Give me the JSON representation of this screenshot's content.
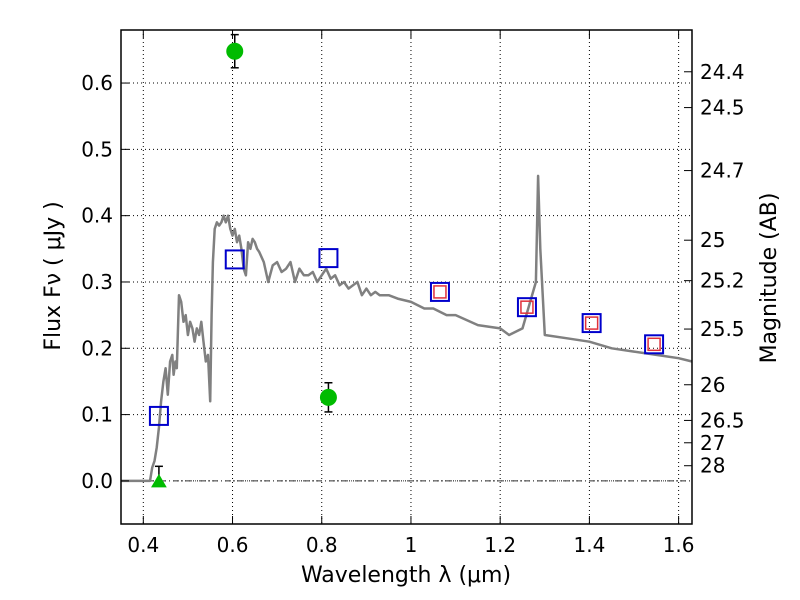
{
  "chart_data": {
    "type": "scatter",
    "xlabel": "Wavelength  λ (μm)",
    "ylabel": "Flux  Fν  ( μJy )",
    "y2label": "Magnitude (AB)",
    "xlim": [
      0.35,
      1.63
    ],
    "ylim": [
      -0.065,
      0.68
    ],
    "grid": true,
    "x_ticks": [
      0.4,
      0.6,
      0.8,
      1.0,
      1.2,
      1.4,
      1.6
    ],
    "x_tick_labels": [
      "0.4",
      "0.6",
      "0.8",
      "1",
      "1.2",
      "1.4",
      "1.6"
    ],
    "y_ticks": [
      0.0,
      0.1,
      0.2,
      0.3,
      0.4,
      0.5,
      0.6
    ],
    "y_tick_labels": [
      "0.0",
      "0.1",
      "0.2",
      "0.3",
      "0.4",
      "0.5",
      "0.6"
    ],
    "mag_ticks": [
      {
        "label": "24.4",
        "flux": 0.617
      },
      {
        "label": "24.5",
        "flux": 0.563
      },
      {
        "label": "24.7",
        "flux": 0.468
      },
      {
        "label": "25",
        "flux": 0.363
      },
      {
        "label": "25.2",
        "flux": 0.302
      },
      {
        "label": "25.5",
        "flux": 0.229
      },
      {
        "label": "26",
        "flux": 0.145
      },
      {
        "label": "26.5",
        "flux": 0.0912
      },
      {
        "label": "27",
        "flux": 0.0575
      },
      {
        "label": "28",
        "flux": 0.0229
      }
    ],
    "series": [
      {
        "name": "model spectrum",
        "style": "line",
        "color": "#808080",
        "x": [
          0.35,
          0.41,
          0.415,
          0.42,
          0.425,
          0.43,
          0.435,
          0.44,
          0.445,
          0.45,
          0.455,
          0.46,
          0.465,
          0.468,
          0.472,
          0.475,
          0.48,
          0.485,
          0.49,
          0.495,
          0.5,
          0.505,
          0.51,
          0.515,
          0.52,
          0.525,
          0.53,
          0.535,
          0.54,
          0.545,
          0.55,
          0.553,
          0.556,
          0.56,
          0.565,
          0.57,
          0.575,
          0.58,
          0.585,
          0.59,
          0.595,
          0.6,
          0.605,
          0.61,
          0.615,
          0.62,
          0.625,
          0.63,
          0.635,
          0.64,
          0.645,
          0.65,
          0.655,
          0.66,
          0.67,
          0.68,
          0.69,
          0.7,
          0.71,
          0.72,
          0.73,
          0.74,
          0.75,
          0.76,
          0.77,
          0.78,
          0.79,
          0.8,
          0.81,
          0.82,
          0.83,
          0.84,
          0.85,
          0.86,
          0.87,
          0.88,
          0.89,
          0.9,
          0.91,
          0.92,
          0.93,
          0.95,
          0.97,
          1.0,
          1.03,
          1.05,
          1.08,
          1.1,
          1.15,
          1.2,
          1.22,
          1.25,
          1.28,
          1.285,
          1.29,
          1.3,
          1.35,
          1.4,
          1.45,
          1.5,
          1.55,
          1.6,
          1.63
        ],
        "y": [
          0.0,
          0.0,
          0.0,
          0.02,
          0.03,
          0.05,
          0.08,
          0.12,
          0.15,
          0.17,
          0.13,
          0.18,
          0.19,
          0.16,
          0.18,
          0.17,
          0.28,
          0.27,
          0.24,
          0.25,
          0.22,
          0.24,
          0.23,
          0.21,
          0.23,
          0.22,
          0.24,
          0.21,
          0.18,
          0.19,
          0.12,
          0.25,
          0.33,
          0.38,
          0.39,
          0.385,
          0.39,
          0.4,
          0.39,
          0.4,
          0.38,
          0.37,
          0.38,
          0.36,
          0.37,
          0.35,
          0.32,
          0.31,
          0.36,
          0.35,
          0.365,
          0.36,
          0.35,
          0.345,
          0.33,
          0.3,
          0.325,
          0.33,
          0.315,
          0.32,
          0.33,
          0.3,
          0.32,
          0.31,
          0.31,
          0.315,
          0.3,
          0.31,
          0.32,
          0.305,
          0.31,
          0.295,
          0.3,
          0.29,
          0.295,
          0.3,
          0.28,
          0.29,
          0.28,
          0.285,
          0.28,
          0.28,
          0.275,
          0.27,
          0.26,
          0.26,
          0.25,
          0.25,
          0.235,
          0.23,
          0.22,
          0.23,
          0.3,
          0.46,
          0.35,
          0.22,
          0.215,
          0.21,
          0.2,
          0.195,
          0.19,
          0.185,
          0.18
        ]
      },
      {
        "name": "photometry (blue squares)",
        "style": "open-square",
        "color": "#0000cc",
        "x": [
          0.435,
          0.605,
          0.815,
          1.065,
          1.26,
          1.405,
          1.545
        ],
        "y": [
          0.098,
          0.334,
          0.336,
          0.285,
          0.262,
          0.238,
          0.206
        ]
      },
      {
        "name": "model bandpass (red squares)",
        "style": "open-square",
        "color": "#e0303a",
        "x": [
          1.065,
          1.26,
          1.405,
          1.545
        ],
        "y": [
          0.285,
          0.262,
          0.238,
          0.206
        ]
      },
      {
        "name": "observed (green circles)",
        "style": "circle",
        "color": "#00bb00",
        "x": [
          0.605,
          0.815
        ],
        "y": [
          0.648,
          0.126
        ],
        "err": [
          0.025,
          0.022
        ]
      },
      {
        "name": "upper limit (green triangle)",
        "style": "triangle",
        "color": "#00bb00",
        "x": [
          0.435
        ],
        "y": [
          0.0
        ],
        "err_up": [
          0.022
        ]
      }
    ]
  }
}
